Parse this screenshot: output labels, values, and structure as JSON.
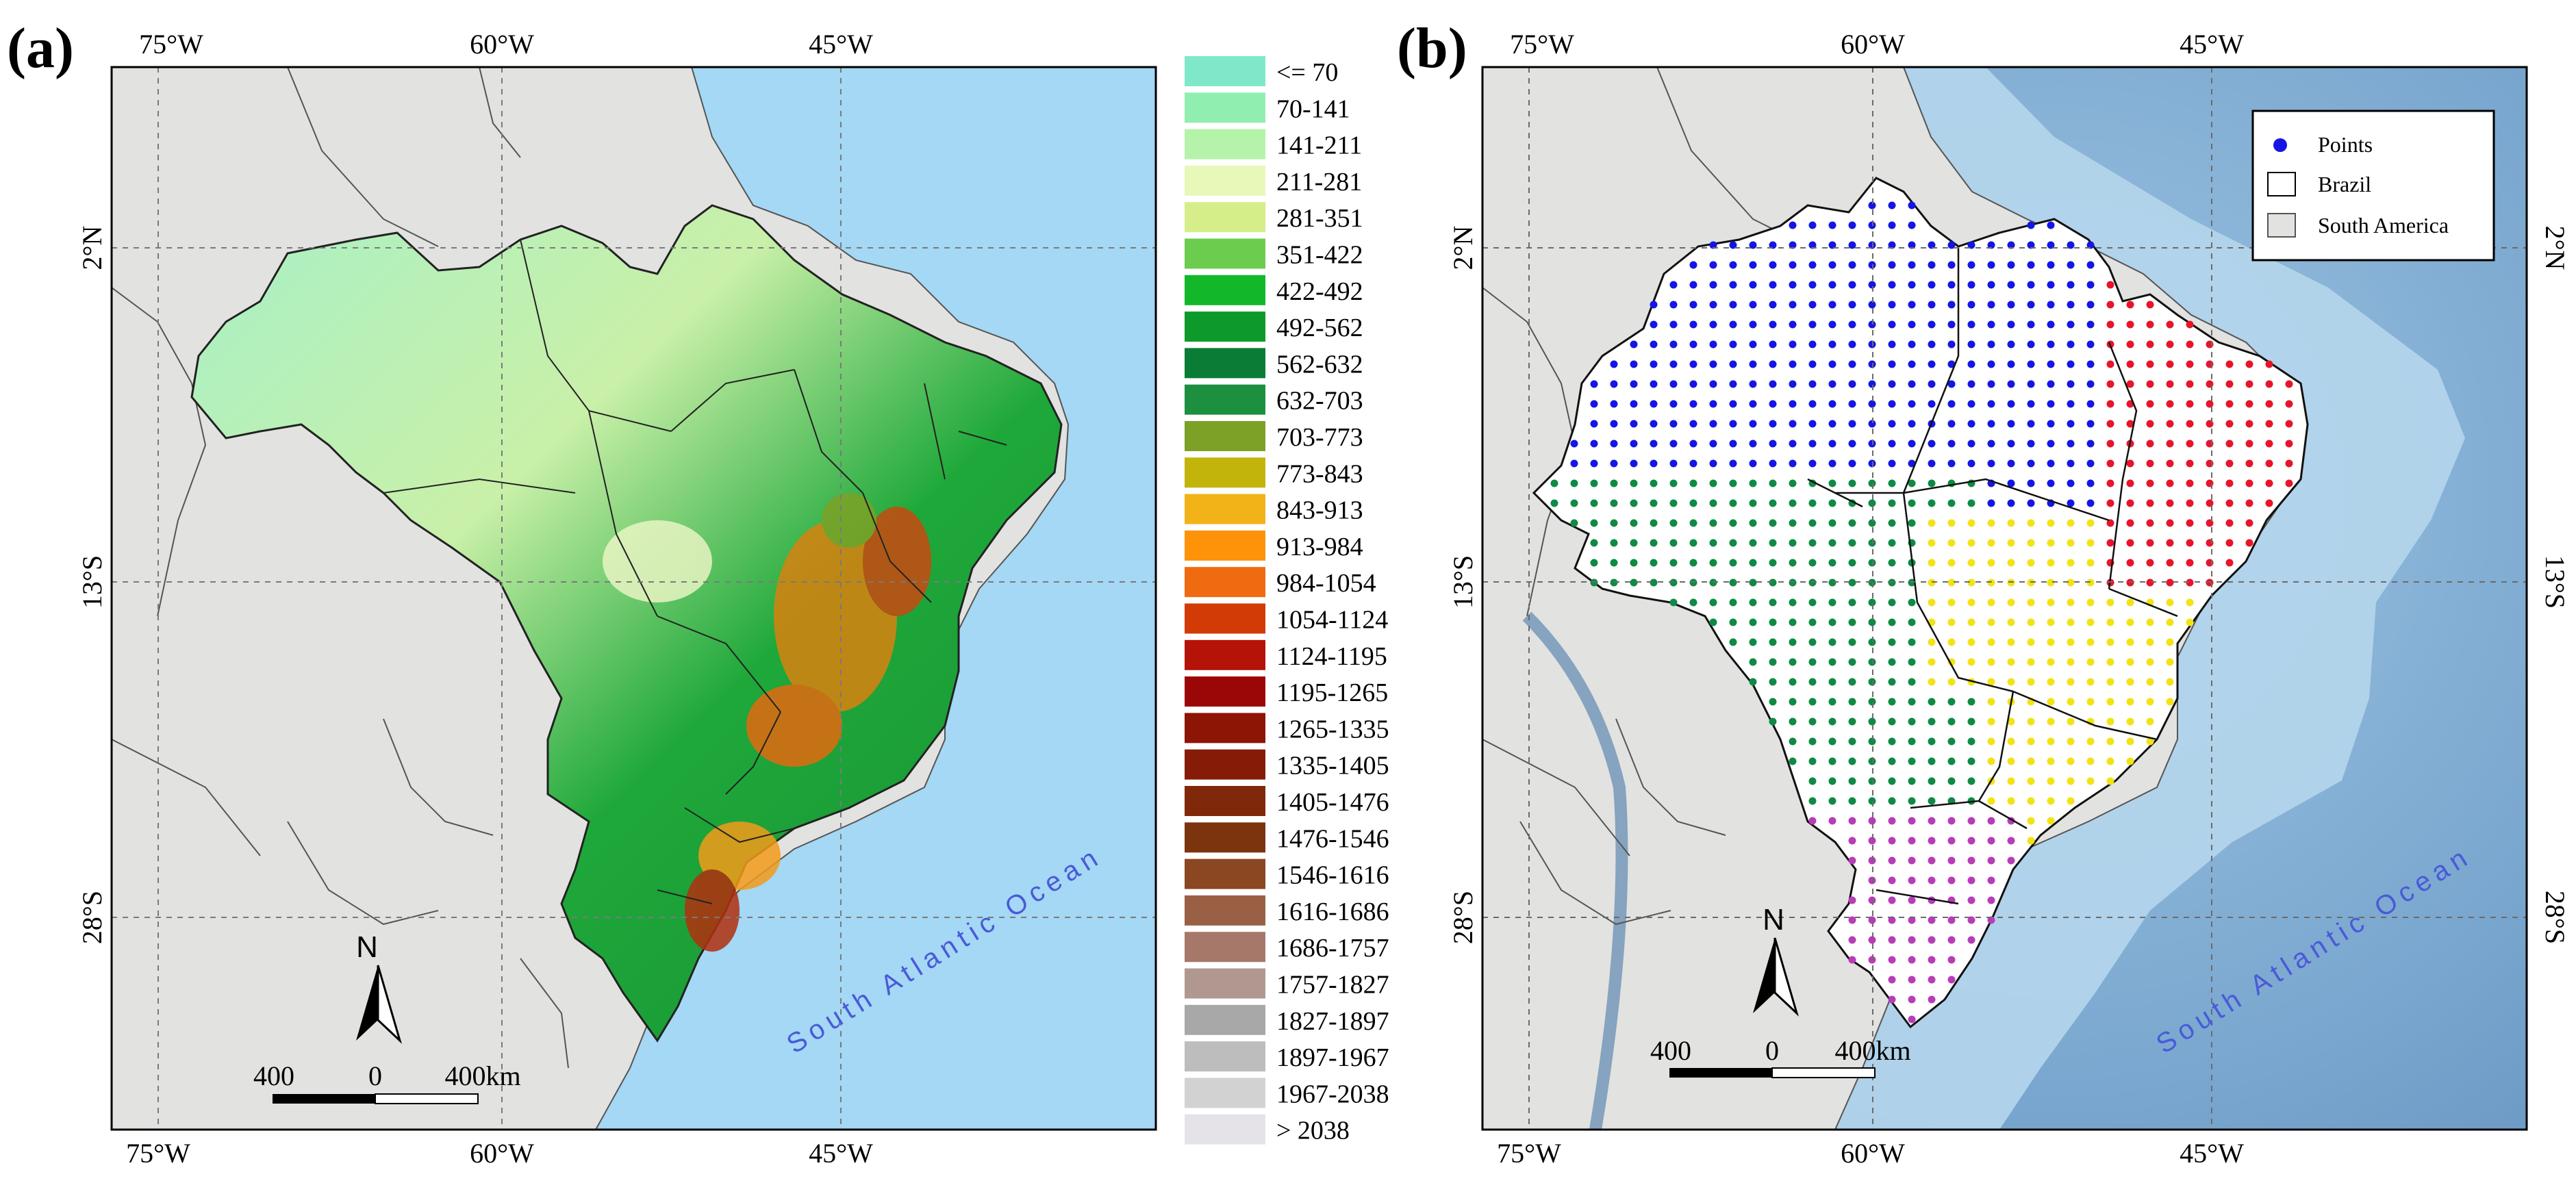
{
  "panels": {
    "a": {
      "label": "(a)",
      "top_ticks": [
        "75°W",
        "60°W",
        "45°W"
      ],
      "bottom_ticks": [
        "75°W",
        "60°W",
        "45°W"
      ],
      "left_ticks": [
        "2°N",
        "13°S",
        "28°S"
      ],
      "ocean_label": "South Atlantic Ocean",
      "north_label": "N",
      "scale_left": "400",
      "scale_mid": "0",
      "scale_right": "400km",
      "legend": [
        {
          "label": "<= 70",
          "color": "#7fe8c8"
        },
        {
          "label": "70-141",
          "color": "#90efb0"
        },
        {
          "label": "141-211",
          "color": "#b5f3aa"
        },
        {
          "label": "211-281",
          "color": "#e7f8b8"
        },
        {
          "label": "281-351",
          "color": "#d5ee8a"
        },
        {
          "label": "351-422",
          "color": "#6ccc4e"
        },
        {
          "label": "422-492",
          "color": "#12b82a"
        },
        {
          "label": "492-562",
          "color": "#0d9a2a"
        },
        {
          "label": "562-632",
          "color": "#0a7c36"
        },
        {
          "label": "632-703",
          "color": "#1d9040"
        },
        {
          "label": "703-773",
          "color": "#7da126"
        },
        {
          "label": "773-843",
          "color": "#c3b40c"
        },
        {
          "label": "843-913",
          "color": "#f2b319"
        },
        {
          "label": "913-984",
          "color": "#fe9208"
        },
        {
          "label": "984-1054",
          "color": "#ef6a10"
        },
        {
          "label": "1054-1124",
          "color": "#d23a06"
        },
        {
          "label": "1124-1195",
          "color": "#b51208"
        },
        {
          "label": "1195-1265",
          "color": "#9b0606"
        },
        {
          "label": "1265-1335",
          "color": "#8c1506"
        },
        {
          "label": "1335-1405",
          "color": "#861c08"
        },
        {
          "label": "1405-1476",
          "color": "#80280a"
        },
        {
          "label": "1476-1546",
          "color": "#7c340f"
        },
        {
          "label": "1546-1616",
          "color": "#8a4722"
        },
        {
          "label": "1616-1686",
          "color": "#9a6046"
        },
        {
          "label": "1686-1757",
          "color": "#a5786a"
        },
        {
          "label": "1757-1827",
          "color": "#b09890"
        },
        {
          "label": "1827-1897",
          "color": "#a8a8a8"
        },
        {
          "label": "1897-1967",
          "color": "#bdbdbd"
        },
        {
          "label": "1967-2038",
          "color": "#d2d2d2"
        },
        {
          "label": "> 2038",
          "color": "#e6e3e8"
        }
      ]
    },
    "b": {
      "label": "(b)",
      "top_ticks": [
        "75°W",
        "60°W",
        "45°W"
      ],
      "bottom_ticks": [
        "75°W",
        "60°W",
        "45°W"
      ],
      "right_ticks": [
        "2°N",
        "13°S",
        "28°S"
      ],
      "left_ticks": [
        "2°N",
        "13°S",
        "28°S"
      ],
      "ocean_label": "South Atlantic Ocean",
      "north_label": "N",
      "scale_left": "400",
      "scale_mid": "0",
      "scale_right": "400km",
      "legend": {
        "points": "Points",
        "brazil": "Brazil",
        "south_america": "South America"
      },
      "region_colors": {
        "north": "#1515e6",
        "northeast": "#e8142a",
        "centerwest": "#0f8a45",
        "southeast": "#f2e316",
        "south": "#b83cb8"
      }
    }
  },
  "colors": {
    "ocean_a": "#a4d8f4",
    "ocean_b": "#8eb6d8",
    "land": "#e2e2e0",
    "grid": "#8a8a8a"
  }
}
